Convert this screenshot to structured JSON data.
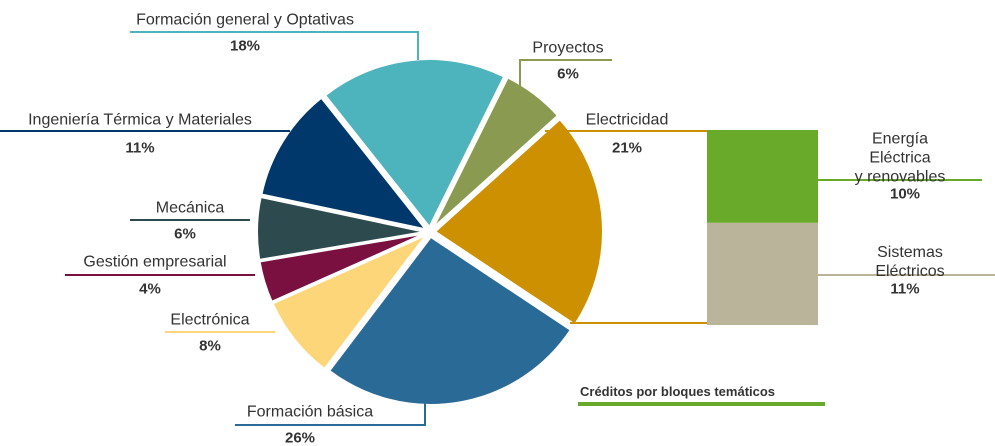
{
  "chart_data": {
    "type": "pie",
    "title": "Créditos por bloques temáticos",
    "categories": [
      "Proyectos",
      "Electricidad",
      "Formación básica",
      "Electrónica",
      "Gestión empresarial",
      "Mecánica",
      "Ingeniería Térmica y Materiales",
      "Formación general y Optativas"
    ],
    "values": [
      6,
      21,
      26,
      8,
      4,
      6,
      11,
      18
    ],
    "value_labels": [
      "6%",
      "21%",
      "26%",
      "8%",
      "4%",
      "6%",
      "11%",
      "18%"
    ],
    "colors": [
      "#8a9a50",
      "#cc9000",
      "#2a6a96",
      "#fdd67a",
      "#7a1040",
      "#2d4b4f",
      "#00386b",
      "#4db3bc"
    ],
    "bar": {
      "categories": [
        "Energía Eléctrica\ny renovables",
        "Sistemas Eléctricos"
      ],
      "values": [
        10,
        11
      ],
      "value_labels": [
        "10%",
        "11%"
      ],
      "colors": [
        "#6aaa2a",
        "#b9b49a"
      ]
    }
  }
}
